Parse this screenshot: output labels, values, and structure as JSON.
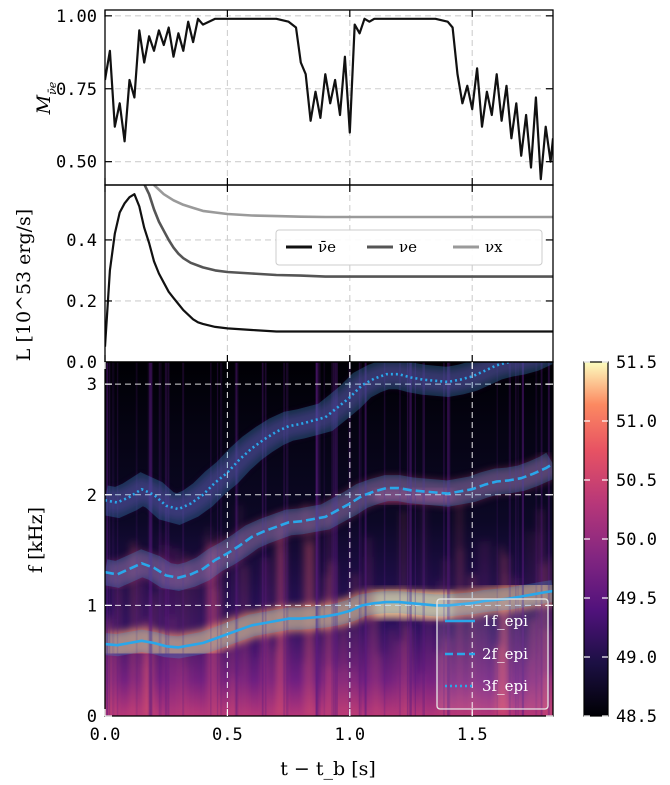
{
  "chart_data": [
    {
      "type": "line",
      "panel": "mass-fraction",
      "ylabel_main": "M",
      "ylabel_sub": "ν̄e",
      "xlim": [
        0,
        1.83
      ],
      "ylim": [
        0.42,
        1.02
      ],
      "yticks": [
        "0.50",
        "0.75",
        "1.00"
      ],
      "ytick_values": [
        0.5,
        0.75,
        1.0
      ],
      "grid": true,
      "series": [
        {
          "color": "#111111",
          "x": [
            0.0,
            0.02,
            0.04,
            0.06,
            0.08,
            0.1,
            0.12,
            0.14,
            0.16,
            0.18,
            0.2,
            0.22,
            0.24,
            0.26,
            0.28,
            0.3,
            0.32,
            0.34,
            0.36,
            0.38,
            0.4,
            0.45,
            0.5,
            0.55,
            0.6,
            0.65,
            0.7,
            0.75,
            0.78,
            0.8,
            0.82,
            0.84,
            0.86,
            0.88,
            0.9,
            0.92,
            0.94,
            0.96,
            0.98,
            1.0,
            1.02,
            1.04,
            1.06,
            1.08,
            1.1,
            1.15,
            1.2,
            1.25,
            1.3,
            1.35,
            1.4,
            1.42,
            1.44,
            1.46,
            1.48,
            1.5,
            1.52,
            1.54,
            1.56,
            1.58,
            1.6,
            1.62,
            1.64,
            1.66,
            1.68,
            1.7,
            1.72,
            1.74,
            1.76,
            1.78,
            1.8,
            1.82,
            1.83
          ],
          "values": [
            0.78,
            0.88,
            0.62,
            0.7,
            0.57,
            0.78,
            0.72,
            0.95,
            0.84,
            0.93,
            0.88,
            0.95,
            0.9,
            0.96,
            0.86,
            0.94,
            0.88,
            0.98,
            0.91,
            0.99,
            0.97,
            0.99,
            0.99,
            0.99,
            0.99,
            0.99,
            0.99,
            0.98,
            0.96,
            0.84,
            0.8,
            0.64,
            0.74,
            0.65,
            0.8,
            0.7,
            0.78,
            0.66,
            0.86,
            0.6,
            0.97,
            0.94,
            0.99,
            0.98,
            0.99,
            0.99,
            0.99,
            0.99,
            0.99,
            0.99,
            0.98,
            0.96,
            0.8,
            0.7,
            0.76,
            0.68,
            0.82,
            0.62,
            0.74,
            0.66,
            0.8,
            0.64,
            0.76,
            0.58,
            0.7,
            0.52,
            0.66,
            0.48,
            0.72,
            0.44,
            0.62,
            0.5,
            0.58
          ]
        }
      ]
    },
    {
      "type": "line",
      "panel": "luminosity",
      "ylabel": "L  [10^53 erg/s]",
      "xlim": [
        0,
        1.83
      ],
      "ylim": [
        0,
        0.58
      ],
      "yticks": [
        "0.0",
        "0.2",
        "0.4"
      ],
      "ytick_values": [
        0,
        0.2,
        0.4
      ],
      "grid": true,
      "legend_position": "upper-right",
      "series": [
        {
          "name": "ν̄e",
          "color": "#111111",
          "x": [
            0.0,
            0.02,
            0.04,
            0.06,
            0.08,
            0.1,
            0.12,
            0.14,
            0.16,
            0.18,
            0.2,
            0.22,
            0.24,
            0.26,
            0.28,
            0.3,
            0.32,
            0.34,
            0.36,
            0.38,
            0.4,
            0.45,
            0.5,
            0.6,
            0.7,
            0.8,
            0.9,
            1.0,
            1.1,
            1.2,
            1.3,
            1.4,
            1.5,
            1.6,
            1.7,
            1.83
          ],
          "values": [
            0.05,
            0.3,
            0.42,
            0.49,
            0.52,
            0.54,
            0.55,
            0.51,
            0.44,
            0.39,
            0.33,
            0.29,
            0.26,
            0.23,
            0.21,
            0.19,
            0.17,
            0.155,
            0.14,
            0.13,
            0.125,
            0.115,
            0.11,
            0.105,
            0.1,
            0.1,
            0.1,
            0.1,
            0.1,
            0.1,
            0.1,
            0.1,
            0.1,
            0.1,
            0.1,
            0.1
          ]
        },
        {
          "name": "νe",
          "color": "#555555",
          "x": [
            0.15,
            0.18,
            0.2,
            0.22,
            0.24,
            0.26,
            0.28,
            0.3,
            0.32,
            0.35,
            0.4,
            0.45,
            0.5,
            0.6,
            0.7,
            0.8,
            0.9,
            1.0,
            1.1,
            1.2,
            1.3,
            1.4,
            1.5,
            1.6,
            1.7,
            1.83
          ],
          "values": [
            0.6,
            0.55,
            0.5,
            0.46,
            0.43,
            0.4,
            0.375,
            0.355,
            0.34,
            0.325,
            0.31,
            0.3,
            0.295,
            0.29,
            0.285,
            0.283,
            0.28,
            0.28,
            0.28,
            0.28,
            0.28,
            0.28,
            0.28,
            0.28,
            0.28,
            0.28
          ]
        },
        {
          "name": "νx",
          "color": "#9a9a9a",
          "x": [
            0.2,
            0.24,
            0.28,
            0.32,
            0.36,
            0.4,
            0.45,
            0.5,
            0.6,
            0.7,
            0.8,
            0.9,
            1.0,
            1.1,
            1.2,
            1.3,
            1.4,
            1.5,
            1.6,
            1.7,
            1.83
          ],
          "values": [
            0.58,
            0.55,
            0.53,
            0.515,
            0.505,
            0.495,
            0.49,
            0.485,
            0.48,
            0.478,
            0.476,
            0.475,
            0.475,
            0.475,
            0.475,
            0.475,
            0.475,
            0.475,
            0.475,
            0.475,
            0.475
          ]
        }
      ]
    },
    {
      "type": "heatmap",
      "panel": "spectrogram",
      "xlabel": "t − t_b  [s]",
      "ylabel": "f  [kHz]",
      "xlim": [
        0,
        1.83
      ],
      "ylim": [
        0,
        3.2
      ],
      "xticks": [
        "0.0",
        "0.5",
        "1.0",
        "1.5"
      ],
      "xtick_values": [
        0,
        0.5,
        1.0,
        1.5
      ],
      "yticks": [
        "0",
        "1",
        "2",
        "3"
      ],
      "ytick_values": [
        0,
        1,
        2,
        3
      ],
      "colorbar": {
        "min": 48.5,
        "max": 51.5,
        "ticks": [
          "48.5",
          "49.0",
          "49.5",
          "50.0",
          "50.5",
          "51.0",
          "51.5"
        ],
        "tick_values": [
          48.5,
          49.0,
          49.5,
          50.0,
          50.5,
          51.0,
          51.5
        ],
        "colormap": "magma"
      },
      "series": [
        {
          "name": "1f_epi",
          "style": "solid",
          "color": "#2aa7ea",
          "x": [
            0.0,
            0.05,
            0.1,
            0.15,
            0.2,
            0.25,
            0.3,
            0.35,
            0.4,
            0.45,
            0.5,
            0.55,
            0.6,
            0.65,
            0.7,
            0.75,
            0.8,
            0.85,
            0.9,
            0.95,
            1.0,
            1.05,
            1.1,
            1.15,
            1.2,
            1.25,
            1.3,
            1.35,
            1.4,
            1.45,
            1.5,
            1.55,
            1.6,
            1.65,
            1.7,
            1.75,
            1.8,
            1.83
          ],
          "values": [
            0.65,
            0.64,
            0.66,
            0.68,
            0.66,
            0.63,
            0.62,
            0.64,
            0.66,
            0.7,
            0.74,
            0.78,
            0.82,
            0.84,
            0.86,
            0.88,
            0.88,
            0.89,
            0.9,
            0.92,
            0.95,
            1.0,
            1.02,
            1.03,
            1.03,
            1.02,
            1.01,
            1.0,
            1.0,
            1.01,
            1.02,
            1.04,
            1.05,
            1.06,
            1.08,
            1.1,
            1.12,
            1.13
          ]
        },
        {
          "name": "2f_epi",
          "style": "dashed",
          "color": "#2aa7ea",
          "x": [
            0.0,
            0.05,
            0.1,
            0.15,
            0.2,
            0.25,
            0.3,
            0.35,
            0.4,
            0.45,
            0.5,
            0.55,
            0.6,
            0.65,
            0.7,
            0.75,
            0.8,
            0.85,
            0.9,
            0.95,
            1.0,
            1.05,
            1.1,
            1.15,
            1.2,
            1.25,
            1.3,
            1.35,
            1.4,
            1.45,
            1.5,
            1.55,
            1.6,
            1.65,
            1.7,
            1.75,
            1.8,
            1.83
          ],
          "values": [
            1.3,
            1.28,
            1.33,
            1.38,
            1.34,
            1.27,
            1.25,
            1.28,
            1.33,
            1.41,
            1.47,
            1.54,
            1.62,
            1.67,
            1.71,
            1.75,
            1.76,
            1.78,
            1.8,
            1.86,
            1.92,
            1.99,
            2.03,
            2.06,
            2.06,
            2.04,
            2.03,
            2.02,
            2.01,
            2.03,
            2.05,
            2.09,
            2.12,
            2.13,
            2.15,
            2.19,
            2.24,
            2.28
          ]
        },
        {
          "name": "3f_epi",
          "style": "dotted",
          "color": "#2aa7ea",
          "x": [
            0.0,
            0.05,
            0.1,
            0.15,
            0.2,
            0.25,
            0.3,
            0.35,
            0.4,
            0.45,
            0.5,
            0.55,
            0.6,
            0.65,
            0.7,
            0.75,
            0.8,
            0.85,
            0.9,
            0.95,
            1.0,
            1.05,
            1.1,
            1.15,
            1.2,
            1.25,
            1.3,
            1.35,
            1.4,
            1.45,
            1.5,
            1.55,
            1.6,
            1.65,
            1.7,
            1.75,
            1.8,
            1.83
          ],
          "values": [
            1.95,
            1.93,
            1.98,
            2.05,
            2.0,
            1.9,
            1.87,
            1.92,
            2.0,
            2.11,
            2.2,
            2.32,
            2.42,
            2.5,
            2.57,
            2.62,
            2.64,
            2.67,
            2.7,
            2.79,
            2.88,
            2.99,
            3.05,
            3.09,
            3.09,
            3.06,
            3.04,
            3.03,
            3.02,
            3.04,
            3.07,
            3.12,
            3.17,
            3.2,
            3.22,
            3.25,
            3.3,
            3.35
          ]
        }
      ]
    }
  ]
}
